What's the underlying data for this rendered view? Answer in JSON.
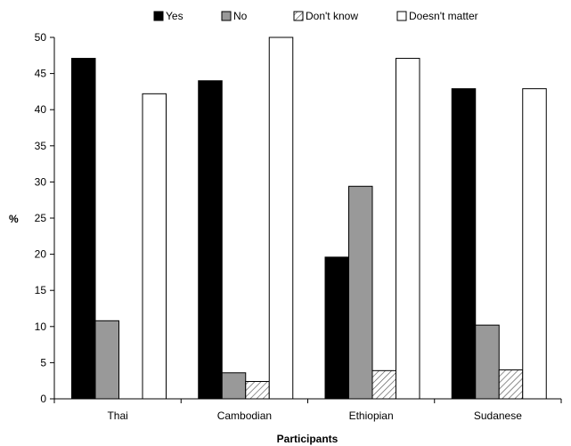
{
  "chart_data": {
    "type": "bar",
    "title": "",
    "xlabel": "Participants",
    "ylabel": "%",
    "ylim": [
      0,
      50
    ],
    "yticks": [
      0,
      5,
      10,
      15,
      20,
      25,
      30,
      35,
      40,
      45,
      50
    ],
    "categories": [
      "Thai",
      "Cambodian",
      "Ethiopian",
      "Sudanese"
    ],
    "series": [
      {
        "name": "Yes",
        "values": [
          47.1,
          44.0,
          19.6,
          42.9
        ],
        "style": "solid",
        "color": "#000000"
      },
      {
        "name": "No",
        "values": [
          10.8,
          3.6,
          29.4,
          10.2
        ],
        "style": "solid",
        "color": "#999999"
      },
      {
        "name": "Don't know",
        "values": [
          0,
          2.4,
          3.9,
          4.0
        ],
        "style": "hatched",
        "color": "#ffffff"
      },
      {
        "name": "Doesn't matter",
        "values": [
          42.2,
          50.0,
          47.1,
          42.9
        ],
        "style": "solid",
        "color": "#ffffff"
      }
    ],
    "legend_position": "top",
    "grid": false
  }
}
